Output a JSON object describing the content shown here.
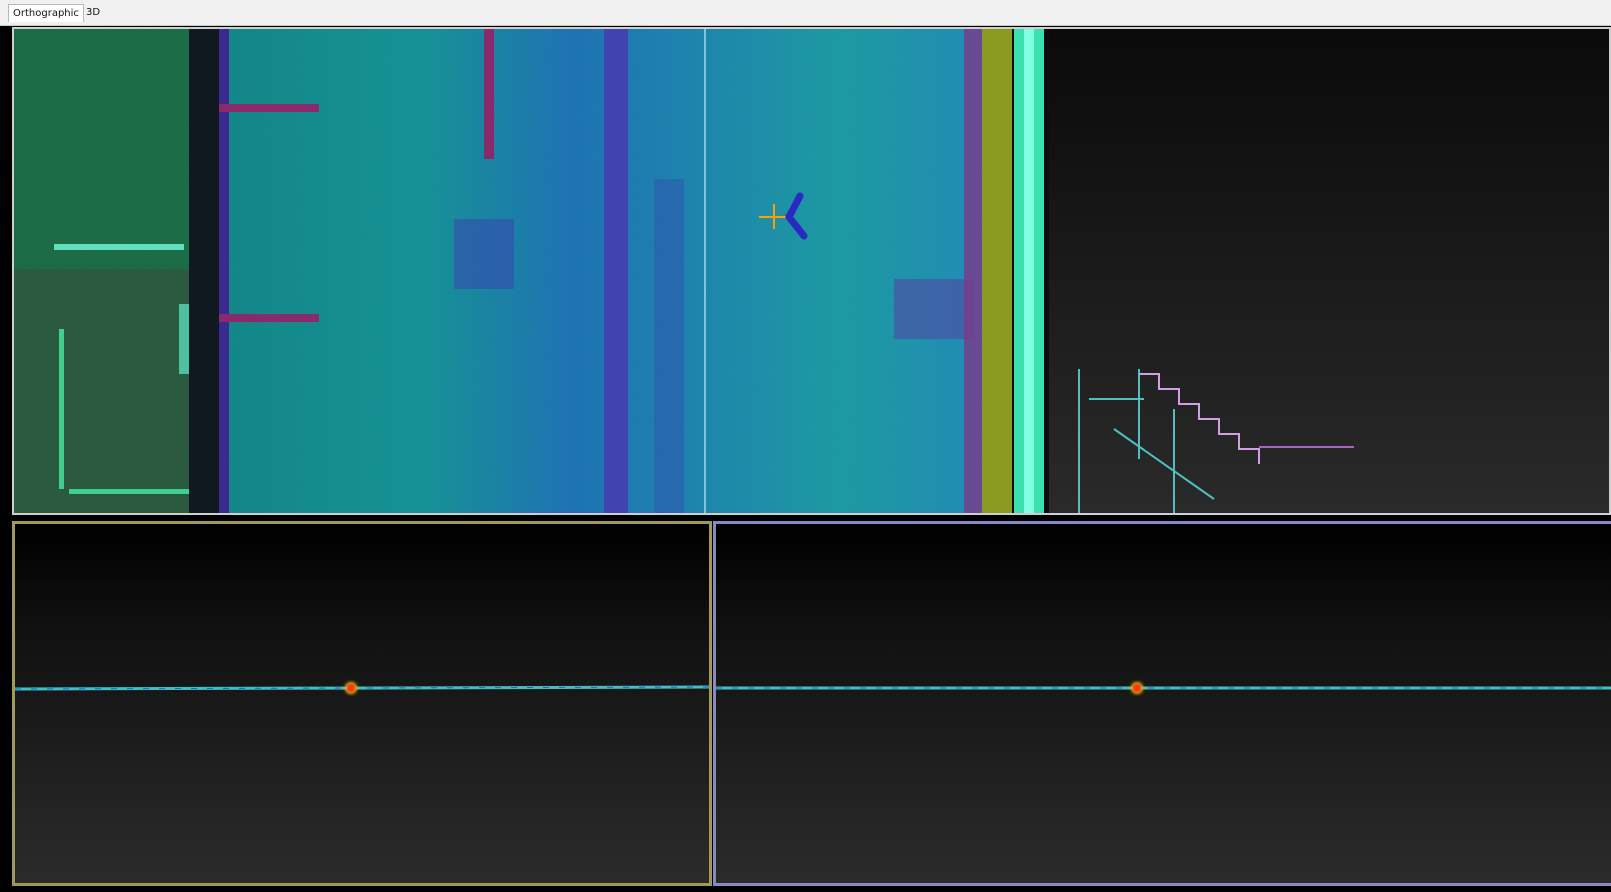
{
  "tabs": [
    {
      "label": "Orthographic",
      "active": true
    },
    {
      "label": "3D",
      "active": false
    }
  ],
  "icons": {
    "crosshair": "crosshair-icon",
    "orientation": "orientation-gizmo-icon",
    "selected_point": "selected-point-marker"
  },
  "colors": {
    "top_border": "#cfcfcf",
    "left_border": "#a09a56",
    "right_border": "#8a87c7",
    "marker": "#ff3b1a",
    "crosshair": "#ffa000"
  }
}
